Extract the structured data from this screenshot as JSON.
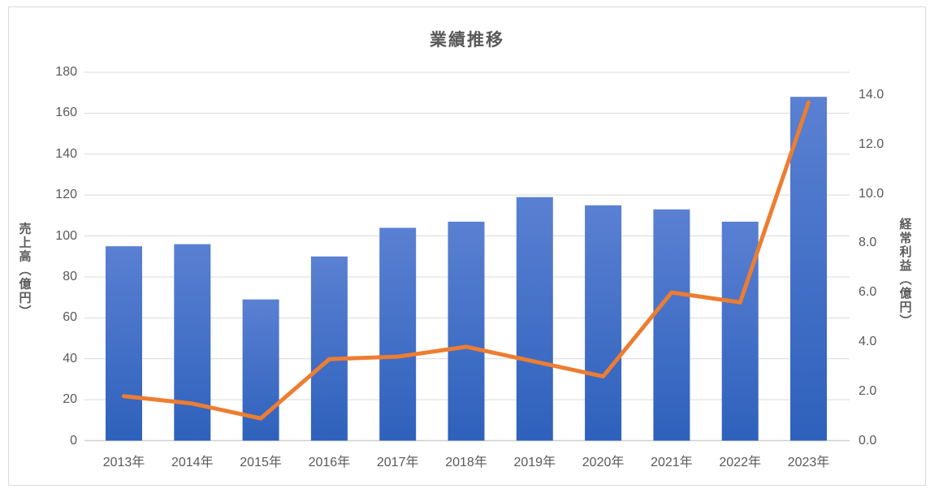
{
  "chart_data": {
    "type": "combo-bar-line",
    "title": "業績推移",
    "categories": [
      "2013年",
      "2014年",
      "2015年",
      "2016年",
      "2017年",
      "2018年",
      "2019年",
      "2020年",
      "2021年",
      "2022年",
      "2023年"
    ],
    "series": [
      {
        "name": "売上高",
        "chart": "bar",
        "axis": "left",
        "values": [
          95,
          96,
          69,
          90,
          104,
          107,
          119,
          115,
          113,
          107,
          168
        ]
      },
      {
        "name": "経常利益",
        "chart": "line",
        "axis": "right",
        "values": [
          1.8,
          1.5,
          0.9,
          3.3,
          3.4,
          3.8,
          3.2,
          2.6,
          6.0,
          5.6,
          13.7
        ]
      }
    ],
    "left_axis": {
      "label": "売上高（億円）",
      "min": 0,
      "max": 180,
      "step": 20
    },
    "right_axis": {
      "label": "経常利益（億円）",
      "min": 0,
      "max": 14,
      "step": 2,
      "tick_decimals": 1
    },
    "legend": "none",
    "grid": true
  },
  "colors": {
    "bar_top": "#5A80D2",
    "bar_bottom": "#2E61BC",
    "line": "#ED7D31",
    "grid": "#D9D9D9",
    "axis_line": "#D0D0D0",
    "text": "#595959",
    "frame_border": "#D9D9D9",
    "background": "#FFFFFF"
  }
}
